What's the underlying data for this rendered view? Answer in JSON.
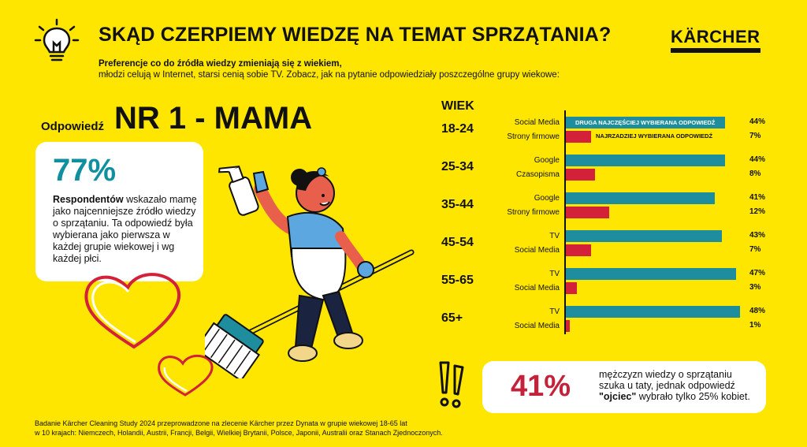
{
  "header": {
    "title": "SKĄD CZERPIEMY WIEDZĘ NA TEMAT SPRZĄTANIA?",
    "subtitle_bold": "Preferencje co do źródła wiedzy zmieniają się z wiekiem,",
    "subtitle": "młodzi celują w Internet, starsi cenią sobie TV. Zobacz, jak na pytanie odpowiedziały poszczególne grupy wiekowe:",
    "logo": "KÄRCHER"
  },
  "left": {
    "answer_label": "Odpowiedź",
    "answer_big": "NR 1 - MAMA",
    "card_pct": "77%",
    "card_bold": "Respondentów",
    "card_text": " wskazało mamę jako najcenniejsze źródło wiedzy o sprzątaniu. Ta odpowiedź była wybierana jako pierwsza w każdej grupie wiekowej i wg każdej płci."
  },
  "right_card": {
    "pct": "41%",
    "text_a": "mężczyzn wiedzy o sprzątaniu szuka u taty, jednak odpowiedź ",
    "text_bold": "\"ojciec\"",
    "text_b": " wybrało tylko 25% kobiet."
  },
  "footer": {
    "line1": "Badanie Kärcher Cleaning Study 2024 przeprowadzone na zlecenie Kärcher przez Dynata w grupie wiekowej 18-65 lat",
    "line2": "w 10 krajach: Niemczech, Holandii, Austrii, Francji, Belgii, Wielkiej Brytanii, Polsce, Japonii, Australii oraz Stanach Zjednoczonych."
  },
  "colors": {
    "background": "#FFE600",
    "most": "#1E8E9E",
    "least": "#D3213A",
    "accent_red": "#C4223A"
  },
  "chart_data": {
    "type": "bar",
    "axis_title": "WIEK",
    "annotations": {
      "most": "DRUGA NAJCZĘŚCIEJ WYBIERANA ODPOWIEDŹ",
      "least": "NAJRZADZIEJ WYBIERANA ODPOWIEDŹ"
    },
    "groups": [
      {
        "age": "18-24",
        "top_label": "Social Media",
        "top_value": 44,
        "bottom_label": "Strony firmowe",
        "bottom_value": 7
      },
      {
        "age": "25-34",
        "top_label": "Google",
        "top_value": 44,
        "bottom_label": "Czasopisma",
        "bottom_value": 8
      },
      {
        "age": "35-44",
        "top_label": "Google",
        "top_value": 41,
        "bottom_label": "Strony firmowe",
        "bottom_value": 12
      },
      {
        "age": "45-54",
        "top_label": "TV",
        "top_value": 43,
        "bottom_label": "Social Media",
        "bottom_value": 7
      },
      {
        "age": "55-65",
        "top_label": "TV",
        "top_value": 47,
        "bottom_label": "Social Media",
        "bottom_value": 3
      },
      {
        "age": "65+",
        "top_label": "TV",
        "top_value": 48,
        "bottom_label": "Social Media",
        "bottom_value": 1
      }
    ],
    "value_suffix": "%"
  }
}
